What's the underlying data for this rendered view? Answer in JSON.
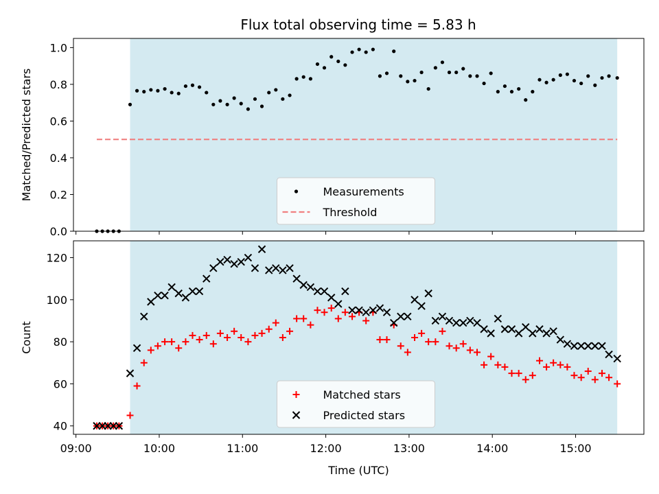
{
  "chart_data": [
    {
      "type": "scatter",
      "title": "Flux total observing time = 5.83 h",
      "xlabel": "",
      "ylabel": "Matched/Predicted stars",
      "ylim": [
        0.0,
        1.05
      ],
      "yticks": [
        "0.0",
        "0.2",
        "0.4",
        "0.6",
        "0.8",
        "1.0"
      ],
      "ytick_values": [
        0.0,
        0.2,
        0.4,
        0.6,
        0.8,
        1.0
      ],
      "xlim_hours": [
        8.97,
        15.82
      ],
      "observing_window_hours": [
        9.65,
        15.5
      ],
      "observing_window_color": "#d4eaf1",
      "legend_position": "lower center",
      "series": [
        {
          "name": "Measurements",
          "marker": "dot",
          "color": "#000000",
          "x": [
            9.25,
            9.317,
            9.383,
            9.45,
            9.517,
            9.65,
            9.733,
            9.817,
            9.9,
            9.983,
            10.067,
            10.15,
            10.233,
            10.317,
            10.4,
            10.483,
            10.567,
            10.65,
            10.733,
            10.817,
            10.9,
            10.983,
            11.067,
            11.15,
            11.233,
            11.317,
            11.4,
            11.483,
            11.567,
            11.65,
            11.733,
            11.817,
            11.9,
            11.983,
            12.067,
            12.15,
            12.233,
            12.317,
            12.4,
            12.483,
            12.567,
            12.65,
            12.733,
            12.817,
            12.9,
            12.983,
            13.067,
            13.15,
            13.233,
            13.317,
            13.4,
            13.483,
            13.567,
            13.65,
            13.733,
            13.817,
            13.9,
            13.983,
            14.067,
            14.15,
            14.233,
            14.317,
            14.4,
            14.483,
            14.567,
            14.65,
            14.733,
            14.817,
            14.9,
            14.983,
            15.067,
            15.15,
            15.233,
            15.317,
            15.4,
            15.5
          ],
          "y": [
            0.0,
            0.0,
            0.0,
            0.0,
            0.0,
            0.69,
            0.765,
            0.76,
            0.77,
            0.765,
            0.775,
            0.755,
            0.75,
            0.79,
            0.795,
            0.785,
            0.755,
            0.69,
            0.71,
            0.69,
            0.725,
            0.695,
            0.665,
            0.72,
            0.68,
            0.755,
            0.77,
            0.72,
            0.74,
            0.83,
            0.84,
            0.83,
            0.91,
            0.89,
            0.95,
            0.925,
            0.905,
            0.975,
            0.99,
            0.975,
            0.99,
            0.845,
            0.86,
            0.98,
            0.845,
            0.815,
            0.82,
            0.865,
            0.775,
            0.89,
            0.92,
            0.865,
            0.865,
            0.885,
            0.845,
            0.845,
            0.805,
            0.86,
            0.76,
            0.79,
            0.76,
            0.775,
            0.715,
            0.76,
            0.825,
            0.81,
            0.825,
            0.85,
            0.855,
            0.82,
            0.805,
            0.845,
            0.795,
            0.835,
            0.845,
            0.835
          ]
        },
        {
          "name": "Threshold",
          "marker": "dashed-line",
          "color": "#f08080",
          "x": [
            9.25,
            15.5
          ],
          "y": [
            0.5,
            0.5
          ]
        }
      ]
    },
    {
      "type": "scatter",
      "title": "",
      "xlabel": "Time (UTC)",
      "ylabel": "Count",
      "ylim": [
        36,
        128
      ],
      "yticks": [
        "40",
        "60",
        "80",
        "100",
        "120"
      ],
      "ytick_values": [
        40,
        60,
        80,
        100,
        120
      ],
      "xlim_hours": [
        8.97,
        15.82
      ],
      "xticks": [
        "09:00",
        "10:00",
        "11:00",
        "12:00",
        "13:00",
        "14:00",
        "15:00"
      ],
      "xtick_hours": [
        9,
        10,
        11,
        12,
        13,
        14,
        15
      ],
      "observing_window_hours": [
        9.65,
        15.5
      ],
      "observing_window_color": "#d4eaf1",
      "legend_position": "lower center",
      "series": [
        {
          "name": "Matched stars",
          "marker": "plus",
          "color": "#ff0000",
          "x": [
            9.25,
            9.317,
            9.383,
            9.45,
            9.517,
            9.65,
            9.733,
            9.817,
            9.9,
            9.983,
            10.067,
            10.15,
            10.233,
            10.317,
            10.4,
            10.483,
            10.567,
            10.65,
            10.733,
            10.817,
            10.9,
            10.983,
            11.067,
            11.15,
            11.233,
            11.317,
            11.4,
            11.483,
            11.567,
            11.65,
            11.733,
            11.817,
            11.9,
            11.983,
            12.067,
            12.15,
            12.233,
            12.317,
            12.4,
            12.483,
            12.567,
            12.65,
            12.733,
            12.817,
            12.9,
            12.983,
            13.067,
            13.15,
            13.233,
            13.317,
            13.4,
            13.483,
            13.567,
            13.65,
            13.733,
            13.817,
            13.9,
            13.983,
            14.067,
            14.15,
            14.233,
            14.317,
            14.4,
            14.483,
            14.567,
            14.65,
            14.733,
            14.817,
            14.9,
            14.983,
            15.067,
            15.15,
            15.233,
            15.317,
            15.4,
            15.5
          ],
          "y": [
            40,
            40,
            40,
            40,
            40,
            45,
            59,
            70,
            76,
            78,
            80,
            80,
            77,
            80,
            83,
            81,
            83,
            79,
            84,
            82,
            85,
            82,
            80,
            83,
            84,
            86,
            89,
            82,
            85,
            91,
            91,
            88,
            95,
            94,
            96,
            91,
            94,
            92,
            94,
            90,
            94,
            81,
            81,
            88,
            78,
            75,
            82,
            84,
            80,
            80,
            85,
            78,
            77,
            79,
            76,
            75,
            69,
            73,
            69,
            68,
            65,
            65,
            62,
            64,
            71,
            68,
            70,
            69,
            68,
            64,
            63,
            66,
            62,
            65,
            63,
            60
          ]
        },
        {
          "name": "Predicted stars",
          "marker": "x",
          "color": "#000000",
          "x": [
            9.25,
            9.317,
            9.383,
            9.45,
            9.517,
            9.65,
            9.733,
            9.817,
            9.9,
            9.983,
            10.067,
            10.15,
            10.233,
            10.317,
            10.4,
            10.483,
            10.567,
            10.65,
            10.733,
            10.817,
            10.9,
            10.983,
            11.067,
            11.15,
            11.233,
            11.317,
            11.4,
            11.483,
            11.567,
            11.65,
            11.733,
            11.817,
            11.9,
            11.983,
            12.067,
            12.15,
            12.233,
            12.317,
            12.4,
            12.483,
            12.567,
            12.65,
            12.733,
            12.817,
            12.9,
            12.983,
            13.067,
            13.15,
            13.233,
            13.317,
            13.4,
            13.483,
            13.567,
            13.65,
            13.733,
            13.817,
            13.9,
            13.983,
            14.067,
            14.15,
            14.233,
            14.317,
            14.4,
            14.483,
            14.567,
            14.65,
            14.733,
            14.817,
            14.9,
            14.983,
            15.067,
            15.15,
            15.233,
            15.317,
            15.4,
            15.5
          ],
          "y": [
            40,
            40,
            40,
            40,
            40,
            65,
            77,
            92,
            99,
            102,
            102,
            106,
            103,
            101,
            104,
            104,
            110,
            115,
            118,
            119,
            117,
            118,
            120,
            115,
            124,
            114,
            115,
            114,
            115,
            110,
            107,
            106,
            104,
            104,
            101,
            98,
            104,
            95,
            95,
            94,
            95,
            96,
            94,
            89,
            92,
            92,
            100,
            97,
            103,
            90,
            92,
            90,
            89,
            89,
            90,
            89,
            86,
            84,
            91,
            86,
            86,
            84,
            87,
            84,
            86,
            84,
            85,
            81,
            79,
            78,
            78,
            78,
            78,
            78,
            74,
            72
          ]
        }
      ]
    }
  ]
}
